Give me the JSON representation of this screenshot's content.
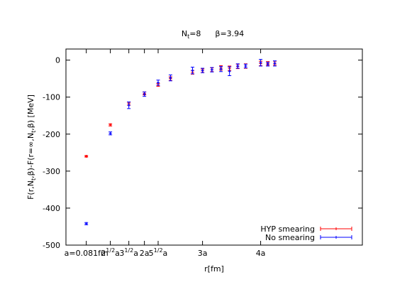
{
  "chart_data": {
    "type": "scatter",
    "title": {
      "nt_main": "N",
      "nt_sub": "t",
      "nt_val": "=8",
      "beta": "β=3.94"
    },
    "xlabel": "r[fm]",
    "ylabel_parts": {
      "p1": "F(r,N",
      "s1": "t",
      "p2": ",β)-F(r=∞,N",
      "s2": "t",
      "p3": ",β) [MeV]"
    },
    "ylim": [
      -500,
      30
    ],
    "xlim": [
      0.65,
      5.75
    ],
    "yticks": [
      0,
      -100,
      -200,
      -300,
      -400,
      -500
    ],
    "xticks": [
      {
        "x": 1,
        "parts": [
          {
            "t": "a=0.081fm"
          }
        ]
      },
      {
        "x": 1.414,
        "parts": [
          {
            "t": "2"
          },
          {
            "t": "1/2",
            "sup": true
          },
          {
            "t": "a"
          }
        ]
      },
      {
        "x": 1.732,
        "parts": [
          {
            "t": "3"
          },
          {
            "t": "1/2",
            "sup": true
          },
          {
            "t": "a"
          }
        ]
      },
      {
        "x": 2,
        "parts": [
          {
            "t": "2a"
          }
        ]
      },
      {
        "x": 2.236,
        "parts": [
          {
            "t": "5"
          },
          {
            "t": "1/2",
            "sup": true
          },
          {
            "t": "a"
          }
        ]
      },
      {
        "x": 3,
        "parts": [
          {
            "t": "3a"
          }
        ]
      },
      {
        "x": 4,
        "parts": [
          {
            "t": "4a"
          }
        ]
      }
    ],
    "series": [
      {
        "name": "HYP smearing",
        "color": "#ff0000",
        "points": [
          {
            "x": 1,
            "y": -260,
            "err": 2
          },
          {
            "x": 1.414,
            "y": -175,
            "err": 3
          },
          {
            "x": 1.732,
            "y": -118,
            "err": 4
          },
          {
            "x": 2,
            "y": -90,
            "err": 4
          },
          {
            "x": 2.236,
            "y": -67,
            "err": 4
          },
          {
            "x": 2.449,
            "y": -50,
            "err": 5
          },
          {
            "x": 2.828,
            "y": -33,
            "err": 5
          },
          {
            "x": 3,
            "y": -29,
            "err": 5
          },
          {
            "x": 3.162,
            "y": -26,
            "err": 5
          },
          {
            "x": 3.317,
            "y": -21,
            "err": 6
          },
          {
            "x": 3.464,
            "y": -22,
            "err": 6
          },
          {
            "x": 3.606,
            "y": -17,
            "err": 6
          },
          {
            "x": 3.742,
            "y": -16,
            "err": 6
          },
          {
            "x": 4,
            "y": -9,
            "err": 6
          },
          {
            "x": 4.123,
            "y": -9,
            "err": 5
          },
          {
            "x": 4.243,
            "y": -8,
            "err": 5
          }
        ]
      },
      {
        "name": "No smearing",
        "color": "#0000ff",
        "points": [
          {
            "x": 1,
            "y": -442,
            "err": 3
          },
          {
            "x": 1.414,
            "y": -198,
            "err": 4
          },
          {
            "x": 1.732,
            "y": -122,
            "err": 9
          },
          {
            "x": 2,
            "y": -92,
            "err": 6
          },
          {
            "x": 2.236,
            "y": -61,
            "err": 7
          },
          {
            "x": 2.449,
            "y": -48,
            "err": 8
          },
          {
            "x": 2.828,
            "y": -28,
            "err": 9
          },
          {
            "x": 3,
            "y": -28,
            "err": 6
          },
          {
            "x": 3.162,
            "y": -26,
            "err": 6
          },
          {
            "x": 3.317,
            "y": -24,
            "err": 7
          },
          {
            "x": 3.464,
            "y": -30,
            "err": 12
          },
          {
            "x": 3.606,
            "y": -16,
            "err": 6
          },
          {
            "x": 3.742,
            "y": -16,
            "err": 5
          },
          {
            "x": 4,
            "y": -7,
            "err": 9
          },
          {
            "x": 4.123,
            "y": -11,
            "err": 5
          },
          {
            "x": 4.243,
            "y": -9,
            "err": 7
          }
        ]
      }
    ],
    "legend": "bottom-right",
    "grid": false
  }
}
